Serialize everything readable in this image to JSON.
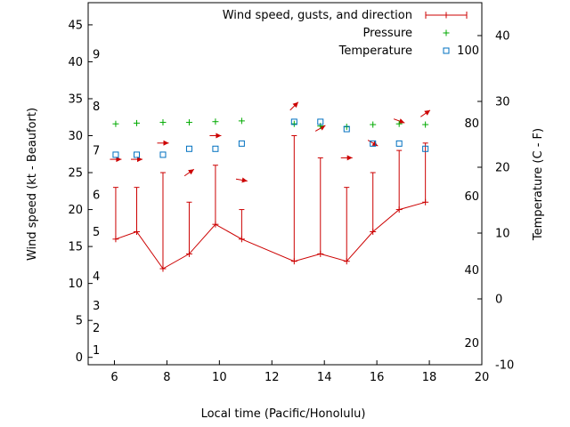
{
  "chart_data": {
    "type": "line",
    "xlabel": "Local time (Pacific/Honolulu)",
    "ylabel_left": "Wind speed (kt - Beaufort)",
    "ylabel_right": "Temperature (C - F)",
    "xlim": [
      5,
      20
    ],
    "ylim_left": [
      -1,
      48
    ],
    "ylim_right": [
      -10,
      45
    ],
    "x_ticks": [
      6,
      8,
      10,
      12,
      14,
      16,
      18,
      20
    ],
    "y_left_ticks": [
      0,
      5,
      10,
      15,
      20,
      25,
      30,
      35,
      40,
      45
    ],
    "y_right_ticks": [
      -10,
      0,
      10,
      20,
      30,
      40
    ],
    "fahrenheit_labels": [
      {
        "label": "20",
        "celsius": -6.7
      },
      {
        "label": "40",
        "celsius": 4.4
      },
      {
        "label": "60",
        "celsius": 15.6
      },
      {
        "label": "80",
        "celsius": 26.7
      },
      {
        "label": "100",
        "celsius": 37.8
      }
    ],
    "beaufort_labels": [
      {
        "label": "1",
        "knots": 1
      },
      {
        "label": "2",
        "knots": 4
      },
      {
        "label": "3",
        "knots": 7
      },
      {
        "label": "4",
        "knots": 11
      },
      {
        "label": "5",
        "knots": 17
      },
      {
        "label": "6",
        "knots": 22
      },
      {
        "label": "7",
        "knots": 28
      },
      {
        "label": "8",
        "knots": 34
      },
      {
        "label": "9",
        "knots": 41
      }
    ],
    "legend": [
      {
        "name": "Wind speed, gusts, and direction",
        "color": "#cc0000",
        "marker": "errorbar"
      },
      {
        "name": "Pressure",
        "color": "#00aa00",
        "marker": "plus"
      },
      {
        "name": "Temperature",
        "color": "#0070c0",
        "marker": "square"
      }
    ],
    "legend_position": "top-right",
    "wind": [
      {
        "x": 6.05,
        "speed": 16,
        "gust": 23,
        "arrow_knots": 26.8,
        "dir_deg": 270
      },
      {
        "x": 6.85,
        "speed": 17,
        "gust": 23,
        "arrow_knots": 26.8,
        "dir_deg": 270
      },
      {
        "x": 7.85,
        "speed": 12,
        "gust": 25,
        "arrow_knots": 29.0,
        "dir_deg": 270
      },
      {
        "x": 8.85,
        "speed": 14,
        "gust": 21,
        "arrow_knots": 25.0,
        "dir_deg": 235
      },
      {
        "x": 9.85,
        "speed": 18,
        "gust": 26,
        "arrow_knots": 30.0,
        "dir_deg": 270
      },
      {
        "x": 10.85,
        "speed": 16,
        "gust": 20,
        "arrow_knots": 24.0,
        "dir_deg": 280
      },
      {
        "x": 12.85,
        "speed": 13,
        "gust": 30,
        "arrow_knots": 34.0,
        "dir_deg": 225
      },
      {
        "x": 13.85,
        "speed": 14,
        "gust": 27,
        "arrow_knots": 31.0,
        "dir_deg": 240
      },
      {
        "x": 14.85,
        "speed": 13,
        "gust": 23,
        "arrow_knots": 27.0,
        "dir_deg": 270
      },
      {
        "x": 15.85,
        "speed": 17,
        "gust": 25,
        "arrow_knots": 29.0,
        "dir_deg": 300
      },
      {
        "x": 16.85,
        "speed": 20,
        "gust": 28,
        "arrow_knots": 32.0,
        "dir_deg": 290
      },
      {
        "x": 17.85,
        "speed": 21,
        "gust": 29,
        "arrow_knots": 33.0,
        "dir_deg": 235
      }
    ],
    "pressure": [
      {
        "x": 6.05,
        "y": 31.6
      },
      {
        "x": 6.85,
        "y": 31.7
      },
      {
        "x": 7.85,
        "y": 31.8
      },
      {
        "x": 8.85,
        "y": 31.8
      },
      {
        "x": 9.85,
        "y": 31.9
      },
      {
        "x": 10.85,
        "y": 32.0
      },
      {
        "x": 12.85,
        "y": 31.6
      },
      {
        "x": 13.85,
        "y": 31.3
      },
      {
        "x": 14.85,
        "y": 31.2
      },
      {
        "x": 15.85,
        "y": 31.5
      },
      {
        "x": 16.85,
        "y": 31.6
      },
      {
        "x": 17.85,
        "y": 31.5
      }
    ],
    "temperature": [
      {
        "x": 6.05,
        "y": 21.9
      },
      {
        "x": 6.85,
        "y": 21.9
      },
      {
        "x": 7.85,
        "y": 21.9
      },
      {
        "x": 8.85,
        "y": 22.8
      },
      {
        "x": 9.85,
        "y": 22.8
      },
      {
        "x": 10.85,
        "y": 23.6
      },
      {
        "x": 12.85,
        "y": 26.9
      },
      {
        "x": 13.85,
        "y": 26.9
      },
      {
        "x": 14.85,
        "y": 25.8
      },
      {
        "x": 15.85,
        "y": 23.6
      },
      {
        "x": 16.85,
        "y": 23.6
      },
      {
        "x": 17.85,
        "y": 22.8
      }
    ]
  }
}
